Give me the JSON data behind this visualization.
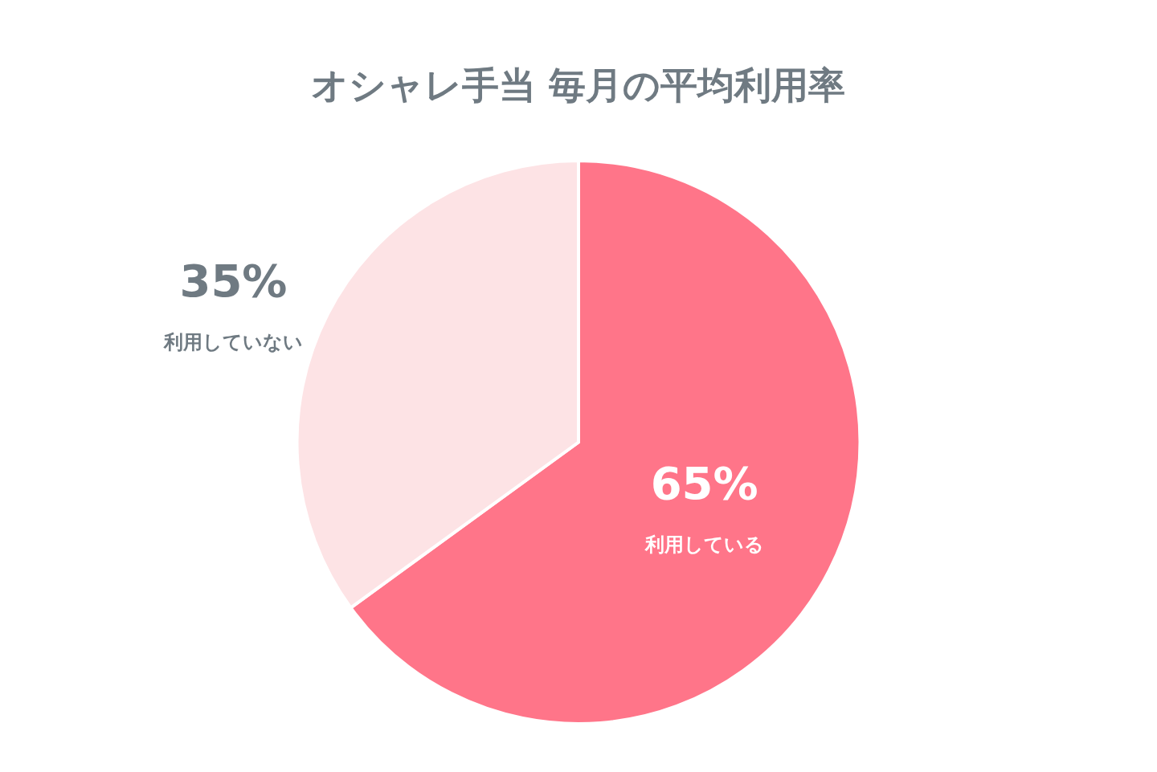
{
  "chart_data": {
    "type": "pie",
    "title": "オシャレ手当 毎月の平均利用率",
    "categories": [
      "利用している",
      "利用していない"
    ],
    "values": [
      65,
      35
    ],
    "value_labels": [
      "65%",
      "35%"
    ],
    "colors": [
      "#ff7589",
      "#fde3e5"
    ],
    "legend": false
  }
}
